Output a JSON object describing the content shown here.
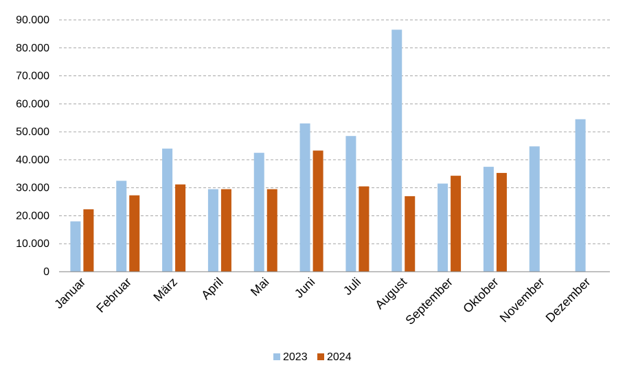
{
  "chart_data": {
    "type": "bar",
    "categories": [
      "Januar",
      "Februar",
      "März",
      "April",
      "Mai",
      "Juni",
      "Juli",
      "August",
      "September",
      "Oktober",
      "November",
      "Dezember"
    ],
    "series": [
      {
        "name": "2023",
        "color": "#9dc3e6",
        "values": [
          18000,
          32500,
          44000,
          29500,
          42500,
          53000,
          48500,
          86500,
          31500,
          37500,
          44800,
          54500
        ]
      },
      {
        "name": "2024",
        "color": "#c55a11",
        "values": [
          22300,
          27300,
          31200,
          29500,
          29500,
          43300,
          30500,
          27000,
          34300,
          35300,
          null,
          null
        ]
      }
    ],
    "y_ticks": [
      "0",
      "10.000",
      "20.000",
      "30.000",
      "40.000",
      "50.000",
      "60.000",
      "70.000",
      "80.000",
      "90.000"
    ],
    "ylim": [
      0,
      90000
    ],
    "grid": true,
    "legend_position": "bottom"
  }
}
